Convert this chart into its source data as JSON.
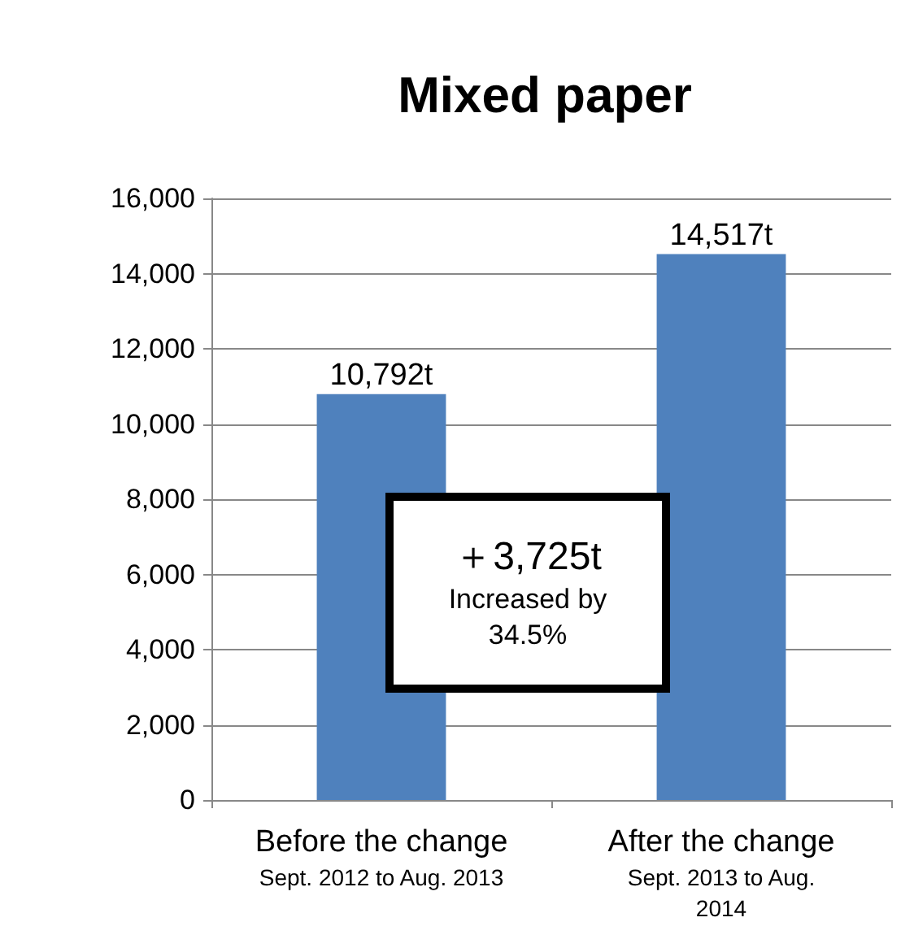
{
  "chart_data": {
    "type": "bar",
    "title": "Mixed paper",
    "categories": [
      "Before the change\nSept. 2012 to Aug. 2013",
      "After the change\nSept. 2013 to Aug.\n2014"
    ],
    "values": [
      10792,
      14517
    ],
    "color": "#4f81bd",
    "value_labels": [
      "10,792t",
      "14,517t"
    ],
    "ylim": [
      0,
      16000
    ],
    "yticks": [
      0,
      {
        "value": 2000,
        "label": "2,000"
      },
      {
        "value": 4000,
        "label": "4,000"
      },
      {
        "value": 6000,
        "label": "6,000"
      },
      {
        "value": 8000,
        "label": "8,000"
      },
      {
        "value": 10000,
        "label": "10,000"
      },
      {
        "value": 12000,
        "label": "12,000"
      },
      {
        "value": 14000,
        "label": "14,000"
      },
      {
        "value": 16000,
        "label": "16,000"
      }
    ],
    "grid": "y",
    "annotations": [
      "＋3,725t\nIncreased by\n34.5%"
    ]
  }
}
